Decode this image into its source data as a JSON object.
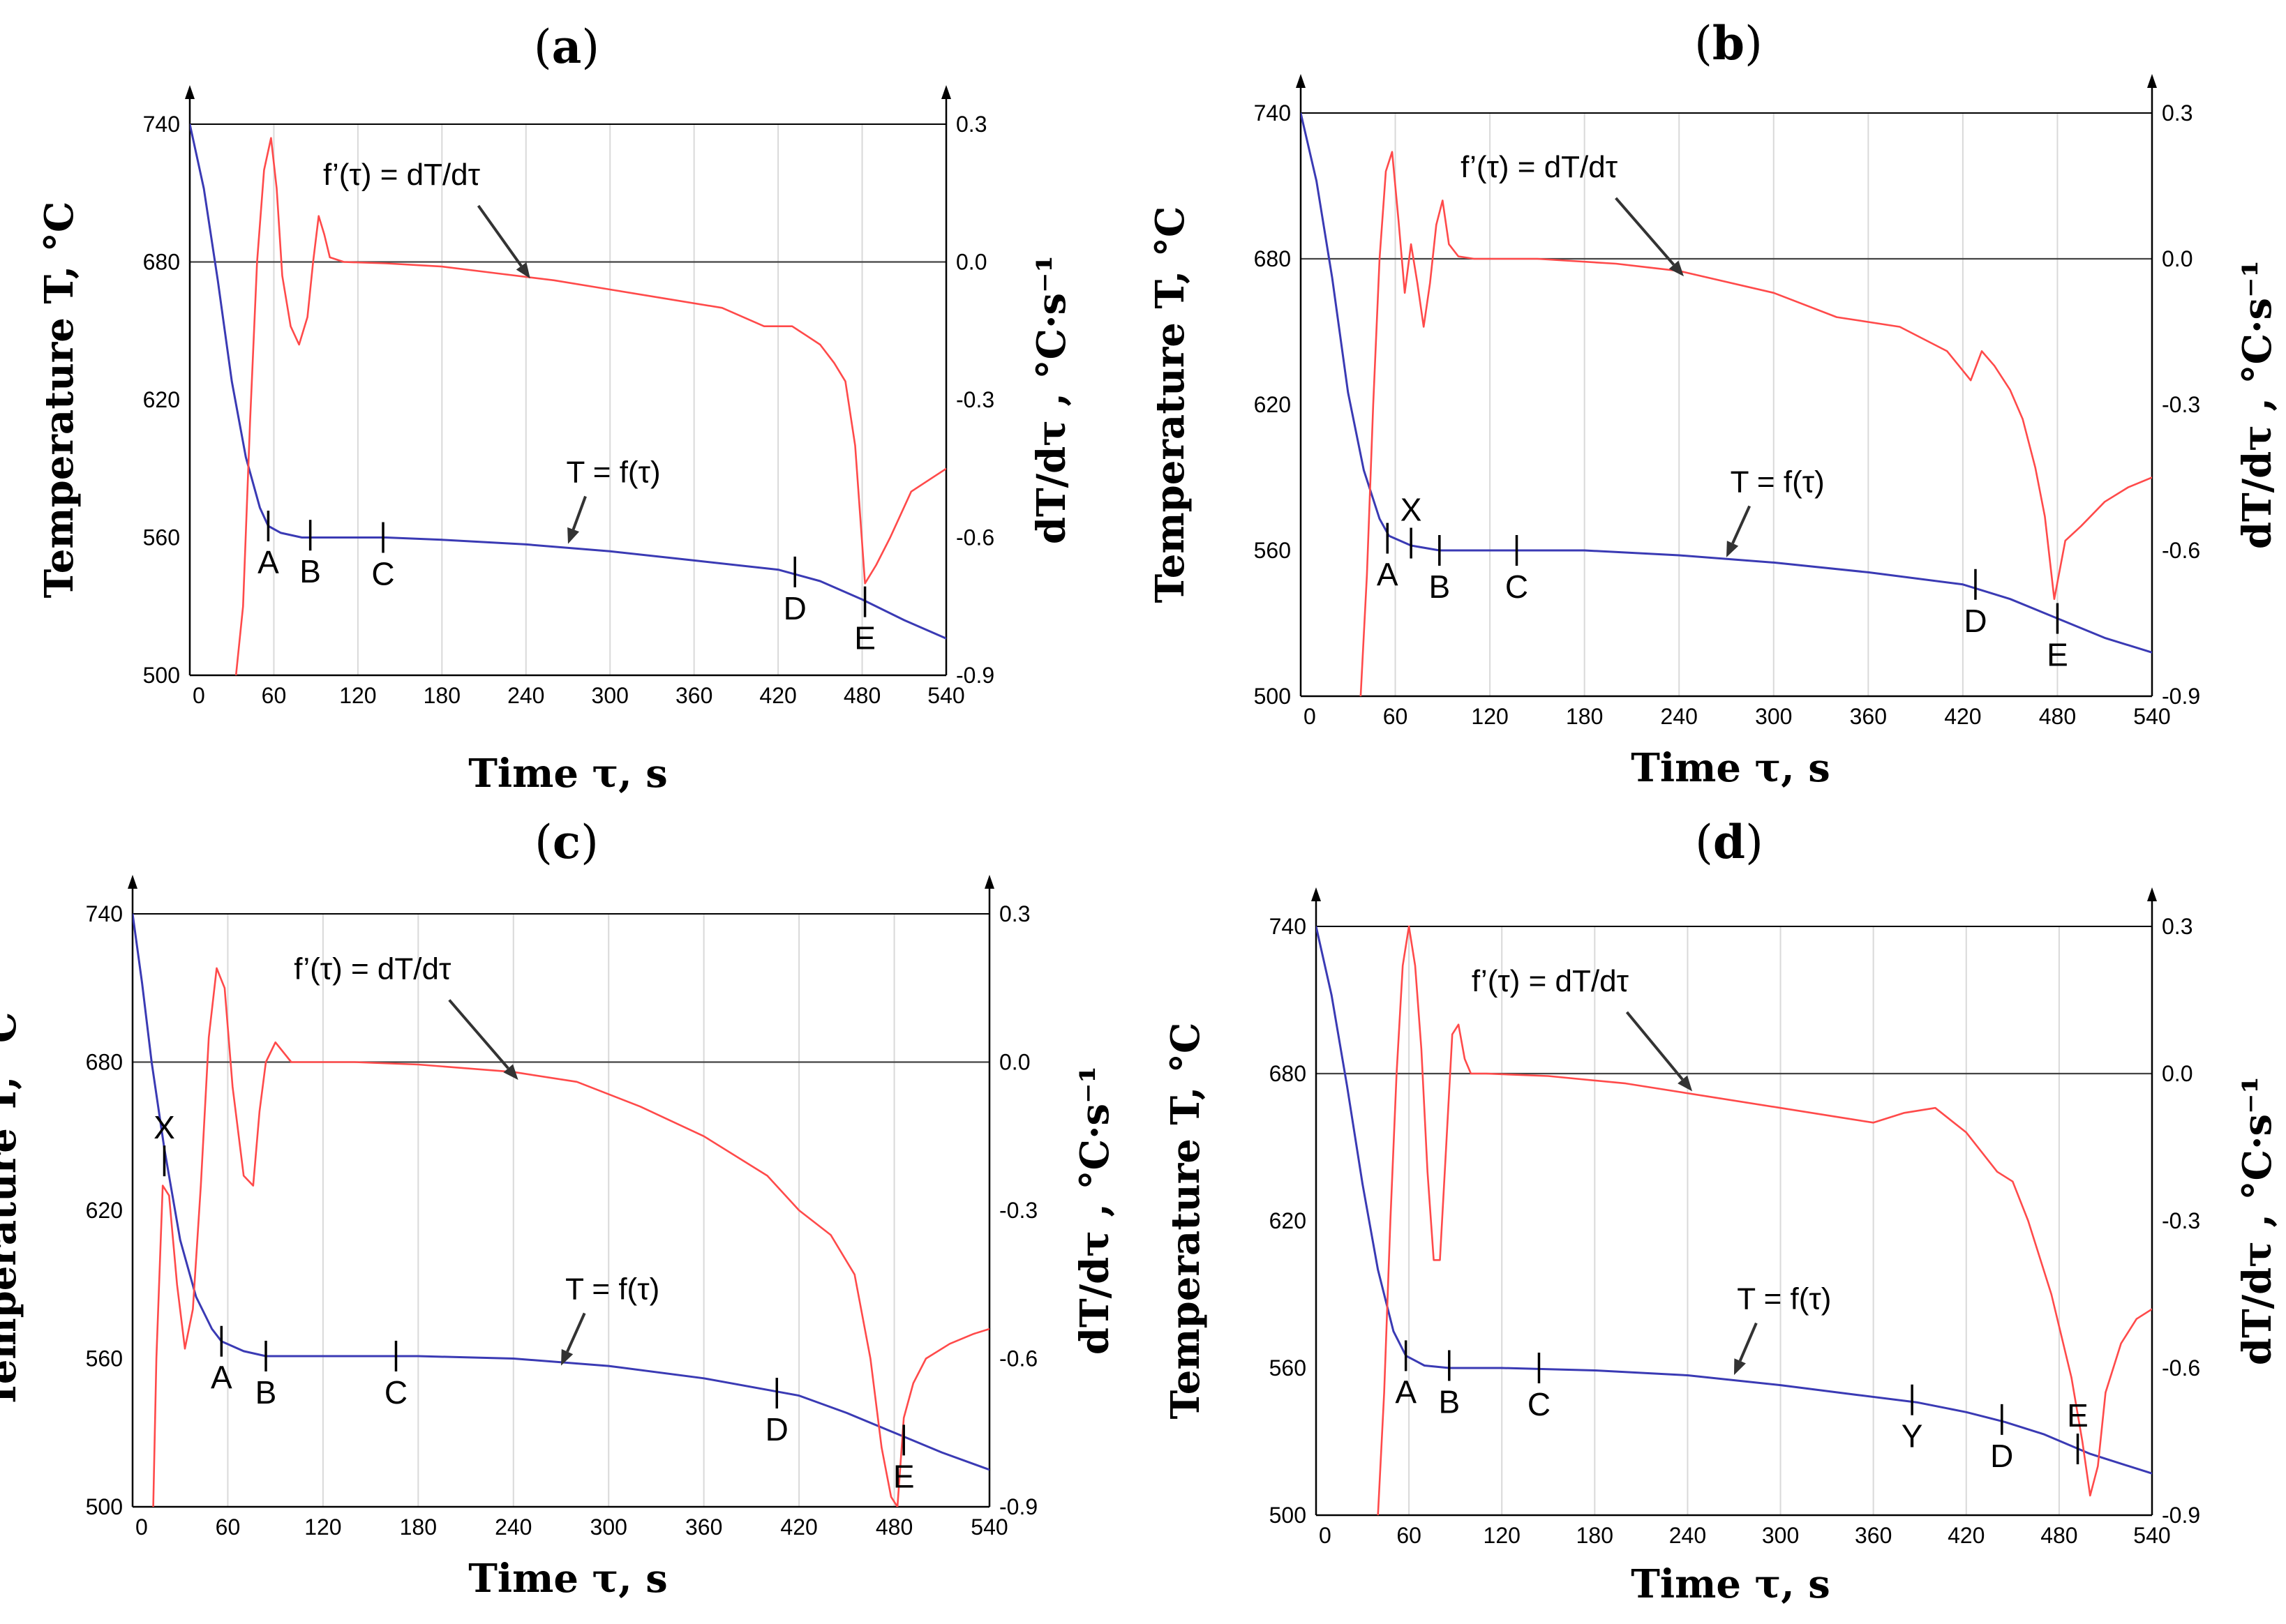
{
  "colors": {
    "temperature": "#3a3ab4",
    "derivative": "#ff4a4a",
    "grid": "#d9d9d9",
    "axis": "#000000",
    "arrow": "#333333"
  },
  "chart_data": [
    {
      "type": "line",
      "letter": "a",
      "xlabel_main": "Time ",
      "xlabel_sym": "τ",
      "xlabel_unit": ", s",
      "ylabel": "Temperature T, °C",
      "y2label": "dT/dτ , °C·s⁻¹",
      "xlim": [
        0,
        540
      ],
      "ylim": [
        500,
        740
      ],
      "y2lim": [
        -0.9,
        0.3
      ],
      "xticks": [
        "0",
        "60",
        "120",
        "180",
        "240",
        "300",
        "360",
        "420",
        "480",
        "540"
      ],
      "yticks": [
        "500",
        "560",
        "620",
        "680",
        "740"
      ],
      "y2ticks": [
        "-0.9",
        "-0.6",
        "-0.3",
        "0.0",
        "0.3"
      ],
      "annotation_deriv": "f’(τ) = dT/dτ",
      "annotation_temp": "T = f(τ)",
      "series": [
        {
          "name": "T = f(τ)",
          "axis": "left",
          "x": [
            0,
            10,
            20,
            30,
            40,
            50,
            56,
            65,
            80,
            100,
            140,
            180,
            240,
            300,
            360,
            420,
            450,
            480,
            510,
            540
          ],
          "y": [
            740,
            712,
            672,
            628,
            595,
            573,
            565,
            562,
            560,
            560,
            560,
            559,
            557,
            554,
            550,
            546,
            541,
            533,
            524,
            516
          ]
        },
        {
          "name": "f’(τ) = dT/dτ",
          "axis": "right",
          "x": [
            33,
            38,
            43,
            48,
            53,
            58,
            62,
            66,
            72,
            78,
            84,
            88,
            92,
            96,
            100,
            110,
            140,
            180,
            220,
            260,
            300,
            340,
            380,
            410,
            430,
            440,
            450,
            460,
            468,
            475,
            482,
            490,
            500,
            515,
            530,
            540
          ],
          "y": [
            -0.9,
            -0.75,
            -0.35,
            0.0,
            0.2,
            0.27,
            0.16,
            -0.03,
            -0.14,
            -0.18,
            -0.12,
            0.0,
            0.1,
            0.06,
            0.01,
            0.0,
            -0.003,
            -0.01,
            -0.025,
            -0.04,
            -0.06,
            -0.08,
            -0.1,
            -0.14,
            -0.14,
            -0.16,
            -0.18,
            -0.22,
            -0.26,
            -0.4,
            -0.7,
            -0.66,
            -0.6,
            -0.5,
            -0.47,
            -0.45
          ]
        }
      ],
      "markers": [
        {
          "label": "A",
          "x": 56,
          "y": 565,
          "side": "below"
        },
        {
          "label": "B",
          "x": 86,
          "y": 561,
          "side": "below"
        },
        {
          "label": "C",
          "x": 138,
          "y": 560,
          "side": "below"
        },
        {
          "label": "D",
          "x": 432,
          "y": 545,
          "side": "below"
        },
        {
          "label": "E",
          "x": 482,
          "y": 532,
          "side": "below"
        }
      ]
    },
    {
      "type": "line",
      "letter": "b",
      "xlabel_main": "Time ",
      "xlabel_sym": "τ",
      "xlabel_unit": ", s",
      "ylabel": "Temperature T, °C",
      "y2label": "dT/dτ , °C·s⁻¹",
      "xlim": [
        0,
        540
      ],
      "ylim": [
        500,
        740
      ],
      "y2lim": [
        -0.9,
        0.3
      ],
      "xticks": [
        "0",
        "60",
        "120",
        "180",
        "240",
        "300",
        "360",
        "420",
        "480",
        "540"
      ],
      "yticks": [
        "500",
        "560",
        "620",
        "680",
        "740"
      ],
      "y2ticks": [
        "-0.9",
        "-0.6",
        "-0.3",
        "0.0",
        "0.3"
      ],
      "annotation_deriv": "f’(τ) = dT/dτ",
      "annotation_temp": "T = f(τ)",
      "series": [
        {
          "name": "T = f(τ)",
          "axis": "left",
          "x": [
            0,
            10,
            20,
            30,
            40,
            50,
            56,
            70,
            88,
            120,
            180,
            240,
            300,
            360,
            420,
            450,
            480,
            510,
            540
          ],
          "y": [
            740,
            712,
            672,
            625,
            593,
            573,
            566,
            562,
            560,
            560,
            560,
            558,
            555,
            551,
            546,
            540,
            532,
            524,
            518
          ]
        },
        {
          "name": "f’(τ) = dT/dτ",
          "axis": "right",
          "x": [
            38,
            42,
            46,
            50,
            54,
            58,
            62,
            66,
            70,
            74,
            78,
            82,
            86,
            90,
            94,
            100,
            110,
            150,
            200,
            240,
            300,
            340,
            380,
            410,
            425,
            432,
            440,
            450,
            458,
            466,
            472,
            478,
            485,
            495,
            510,
            525,
            540
          ],
          "y": [
            -0.9,
            -0.65,
            -0.3,
            0.0,
            0.18,
            0.22,
            0.08,
            -0.07,
            0.03,
            -0.05,
            -0.14,
            -0.05,
            0.07,
            0.12,
            0.03,
            0.005,
            0.0,
            0.0,
            -0.01,
            -0.025,
            -0.07,
            -0.12,
            -0.14,
            -0.19,
            -0.25,
            -0.19,
            -0.22,
            -0.27,
            -0.33,
            -0.43,
            -0.53,
            -0.7,
            -0.58,
            -0.55,
            -0.5,
            -0.47,
            -0.45
          ]
        }
      ],
      "markers": [
        {
          "label": "A",
          "x": 55,
          "y": 565,
          "side": "below"
        },
        {
          "label": "X",
          "x": 70,
          "y": 563,
          "side": "above"
        },
        {
          "label": "B",
          "x": 88,
          "y": 560,
          "side": "below"
        },
        {
          "label": "C",
          "x": 137,
          "y": 560,
          "side": "below"
        },
        {
          "label": "D",
          "x": 428,
          "y": 546,
          "side": "below"
        },
        {
          "label": "E",
          "x": 480,
          "y": 532,
          "side": "below"
        }
      ]
    },
    {
      "type": "line",
      "letter": "c",
      "xlabel_main": "Time ",
      "xlabel_sym": "τ",
      "xlabel_unit": ", s",
      "ylabel": "Temperature T, °C",
      "y2label": "dT/dτ , °C·s⁻¹",
      "xlim": [
        0,
        540
      ],
      "ylim": [
        500,
        740
      ],
      "y2lim": [
        -0.9,
        0.3
      ],
      "xticks": [
        "0",
        "60",
        "120",
        "180",
        "240",
        "300",
        "360",
        "420",
        "480",
        "540"
      ],
      "yticks": [
        "500",
        "560",
        "620",
        "680",
        "740"
      ],
      "y2ticks": [
        "-0.9",
        "-0.6",
        "-0.3",
        "0.0",
        "0.3"
      ],
      "annotation_deriv": "f’(τ) = dT/dτ",
      "annotation_temp": "T = f(τ)",
      "series": [
        {
          "name": "T = f(τ)",
          "axis": "left",
          "x": [
            0,
            6,
            12,
            20,
            30,
            40,
            50,
            56,
            70,
            84,
            120,
            180,
            240,
            300,
            360,
            420,
            450,
            480,
            510,
            540
          ],
          "y": [
            740,
            712,
            680,
            645,
            608,
            585,
            572,
            567,
            563,
            561,
            561,
            561,
            560,
            557,
            552,
            545,
            538,
            530,
            522,
            515
          ]
        },
        {
          "name": "f’(τ) = dT/dτ",
          "axis": "right",
          "x": [
            13,
            15,
            19,
            23,
            28,
            33,
            38,
            43,
            48,
            53,
            58,
            63,
            70,
            76,
            80,
            84,
            90,
            100,
            140,
            180,
            240,
            280,
            320,
            360,
            400,
            420,
            440,
            455,
            465,
            472,
            478,
            482,
            486,
            492,
            500,
            515,
            530,
            540
          ],
          "y": [
            -0.9,
            -0.6,
            -0.25,
            -0.27,
            -0.45,
            -0.58,
            -0.5,
            -0.25,
            0.05,
            0.19,
            0.15,
            -0.05,
            -0.23,
            -0.25,
            -0.1,
            0.0,
            0.04,
            0.0,
            0.0,
            -0.005,
            -0.02,
            -0.04,
            -0.09,
            -0.15,
            -0.23,
            -0.3,
            -0.35,
            -0.43,
            -0.6,
            -0.78,
            -0.88,
            -0.9,
            -0.72,
            -0.65,
            -0.6,
            -0.57,
            -0.55,
            -0.54
          ]
        }
      ],
      "markers": [
        {
          "label": "X",
          "x": 20,
          "y": 640,
          "side": "above"
        },
        {
          "label": "A",
          "x": 56,
          "y": 567,
          "side": "below"
        },
        {
          "label": "B",
          "x": 84,
          "y": 561,
          "side": "below"
        },
        {
          "label": "C",
          "x": 166,
          "y": 561,
          "side": "below"
        },
        {
          "label": "D",
          "x": 406,
          "y": 546,
          "side": "below"
        },
        {
          "label": "E",
          "x": 486,
          "y": 527,
          "side": "below"
        }
      ]
    },
    {
      "type": "line",
      "letter": "d",
      "xlabel_main": "Time ",
      "xlabel_sym": "τ",
      "xlabel_unit": ", s",
      "ylabel": "Temperature T, °C",
      "y2label": "dT/dτ , °C·s⁻¹",
      "xlim": [
        0,
        540
      ],
      "ylim": [
        500,
        740
      ],
      "y2lim": [
        -0.9,
        0.3
      ],
      "xticks": [
        "0",
        "60",
        "120",
        "180",
        "240",
        "300",
        "360",
        "420",
        "480",
        "540"
      ],
      "yticks": [
        "500",
        "560",
        "620",
        "680",
        "740"
      ],
      "y2ticks": [
        "-0.9",
        "-0.6",
        "-0.3",
        "0.0",
        "0.3"
      ],
      "annotation_deriv": "f’(τ) = dT/dτ",
      "annotation_temp": "T = f(τ)",
      "series": [
        {
          "name": "T = f(τ)",
          "axis": "left",
          "x": [
            0,
            10,
            20,
            30,
            40,
            50,
            58,
            70,
            86,
            120,
            180,
            240,
            300,
            350,
            388,
            420,
            445,
            470,
            500,
            520,
            540
          ],
          "y": [
            740,
            712,
            675,
            635,
            600,
            575,
            565,
            561,
            560,
            560,
            559,
            557,
            553,
            549,
            546,
            542,
            538,
            533,
            525,
            521,
            517
          ]
        },
        {
          "name": "f’(τ) = dT/dτ",
          "axis": "right",
          "x": [
            40,
            44,
            48,
            52,
            56,
            60,
            64,
            68,
            72,
            76,
            80,
            84,
            88,
            92,
            96,
            100,
            110,
            150,
            200,
            260,
            300,
            340,
            360,
            380,
            400,
            420,
            440,
            450,
            460,
            475,
            488,
            495,
            500,
            505,
            510,
            520,
            530,
            540
          ],
          "y": [
            -0.9,
            -0.65,
            -0.3,
            0.0,
            0.22,
            0.3,
            0.22,
            0.05,
            -0.2,
            -0.38,
            -0.38,
            -0.15,
            0.08,
            0.1,
            0.03,
            0.0,
            0.0,
            -0.005,
            -0.02,
            -0.05,
            -0.07,
            -0.09,
            -0.1,
            -0.08,
            -0.07,
            -0.12,
            -0.2,
            -0.22,
            -0.3,
            -0.45,
            -0.62,
            -0.75,
            -0.86,
            -0.8,
            -0.65,
            -0.55,
            -0.5,
            -0.48
          ]
        }
      ],
      "markers": [
        {
          "label": "A",
          "x": 58,
          "y": 565,
          "side": "below"
        },
        {
          "label": "B",
          "x": 86,
          "y": 561,
          "side": "below"
        },
        {
          "label": "C",
          "x": 144,
          "y": 560,
          "side": "below"
        },
        {
          "label": "Y",
          "x": 385,
          "y": 547,
          "side": "below"
        },
        {
          "label": "D",
          "x": 443,
          "y": 539,
          "side": "below"
        },
        {
          "label": "E",
          "x": 492,
          "y": 527,
          "side": "above"
        }
      ]
    }
  ]
}
